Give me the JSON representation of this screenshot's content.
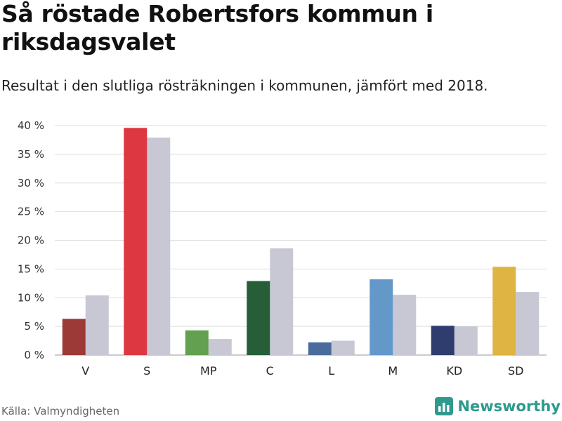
{
  "header": {
    "title": "Så röstade Robertsfors kommun i riksdagsvalet",
    "subtitle": "Resultat i den slutliga rösträkningen i kommunen, jämfört med 2018."
  },
  "footer": {
    "source": "Källa: Valmyndigheten",
    "brand": "Newsworthy",
    "brand_icon": "bar-chart-logo-icon",
    "brand_color": "#2e9a8e"
  },
  "chart_data": {
    "type": "bar",
    "categories": [
      "V",
      "S",
      "MP",
      "C",
      "L",
      "M",
      "KD",
      "SD"
    ],
    "series": [
      {
        "values": [
          6.3,
          39.6,
          4.3,
          12.9,
          2.2,
          13.2,
          5.1,
          15.4
        ],
        "colors": [
          "#9b3a36",
          "#dd3842",
          "#63a04f",
          "#265e37",
          "#4a6b9c",
          "#6398c9",
          "#2e3d6e",
          "#dfb443"
        ]
      },
      {
        "values": [
          10.4,
          37.9,
          2.8,
          18.6,
          2.5,
          10.5,
          5.0,
          11.0
        ],
        "color": "#c8c7d4"
      }
    ],
    "ylim": [
      0,
      40
    ],
    "yticks": [
      0,
      5,
      10,
      15,
      20,
      25,
      30,
      35,
      40
    ],
    "ytick_suffix": " %",
    "grid": true
  }
}
